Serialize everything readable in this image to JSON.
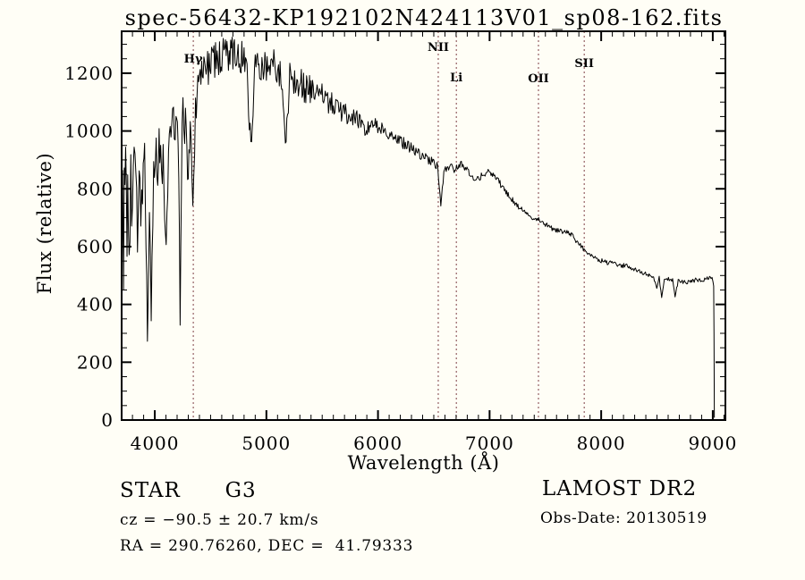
{
  "title": "spec-56432-KP192102N424113V01_sp08-162.fits",
  "annotations": {
    "object_class": "STAR      G3",
    "survey": "LAMOST DR2",
    "cz": "cz = −90.5 ± 20.7 km/s",
    "obs_date": "Obs-Date: 20130519",
    "ra_dec": "RA = 290.76260, DEC =  41.79333"
  },
  "chart_data": {
    "type": "line",
    "title": "spec-56432-KP192102N424113V01_sp08-162.fits",
    "xlabel": "Wavelength (Å)",
    "ylabel": "Flux (relative)",
    "xlim": [
      3703,
      9113
    ],
    "ylim": [
      0,
      1345
    ],
    "xticks": [
      4000,
      5000,
      6000,
      7000,
      8000,
      9000
    ],
    "yticks": [
      0,
      200,
      400,
      600,
      800,
      1000,
      1200
    ],
    "x_minor_step": 100,
    "y_minor_step": 50,
    "grid": false,
    "frame_color": "#000000",
    "curve_color": "#000000",
    "marker_line_color": "#7e4046",
    "spectral_lines": [
      {
        "label": "Hγ",
        "wavelength": 4345,
        "label_y": 70
      },
      {
        "label": "NII",
        "wavelength": 6540,
        "label_y": 57
      },
      {
        "label": "Li",
        "wavelength": 6702,
        "label_y": 91
      },
      {
        "label": "OII",
        "wavelength": 7438,
        "label_y": 92
      },
      {
        "label": "SII",
        "wavelength": 7848,
        "label_y": 75
      }
    ],
    "points_format": [
      "wavelength_angstrom",
      "flux_relative",
      "noise_half_amplitude"
    ],
    "series": [
      {
        "name": "spectrum",
        "points": [
          [
            3703,
            560,
            260
          ],
          [
            3720,
            680,
            240
          ],
          [
            3745,
            760,
            210
          ],
          [
            3770,
            700,
            230
          ],
          [
            3800,
            820,
            170
          ],
          [
            3830,
            700,
            210
          ],
          [
            3860,
            820,
            160
          ],
          [
            3890,
            770,
            170
          ],
          [
            3915,
            860,
            120
          ],
          [
            3934,
            270,
            40
          ],
          [
            3952,
            760,
            90
          ],
          [
            3968,
            360,
            45
          ],
          [
            3990,
            820,
            110
          ],
          [
            4020,
            900,
            110
          ],
          [
            4045,
            950,
            105
          ],
          [
            4075,
            880,
            100
          ],
          [
            4102,
            570,
            60
          ],
          [
            4130,
            1010,
            100
          ],
          [
            4160,
            1080,
            95
          ],
          [
            4190,
            1030,
            95
          ],
          [
            4215,
            900,
            80
          ],
          [
            4227,
            300,
            35
          ],
          [
            4245,
            1060,
            85
          ],
          [
            4275,
            1020,
            85
          ],
          [
            4300,
            780,
            70
          ],
          [
            4318,
            1080,
            80
          ],
          [
            4341,
            720,
            55
          ],
          [
            4365,
            1090,
            85
          ],
          [
            4400,
            1170,
            80
          ],
          [
            4440,
            1210,
            75
          ],
          [
            4480,
            1230,
            70
          ],
          [
            4530,
            1245,
            70
          ],
          [
            4580,
            1250,
            68
          ],
          [
            4640,
            1262,
            65
          ],
          [
            4700,
            1270,
            62
          ],
          [
            4760,
            1262,
            62
          ],
          [
            4820,
            1255,
            60
          ],
          [
            4861,
            945,
            40
          ],
          [
            4900,
            1240,
            58
          ],
          [
            4960,
            1228,
            58
          ],
          [
            5020,
            1230,
            56
          ],
          [
            5080,
            1235,
            55
          ],
          [
            5130,
            1190,
            55
          ],
          [
            5170,
            940,
            40
          ],
          [
            5210,
            1200,
            60
          ],
          [
            5260,
            1185,
            62
          ],
          [
            5320,
            1165,
            62
          ],
          [
            5380,
            1150,
            58
          ],
          [
            5440,
            1135,
            52
          ],
          [
            5520,
            1110,
            46
          ],
          [
            5600,
            1088,
            40
          ],
          [
            5680,
            1068,
            36
          ],
          [
            5760,
            1050,
            33
          ],
          [
            5840,
            1035,
            30
          ],
          [
            5890,
            995,
            22
          ],
          [
            5940,
            1030,
            27
          ],
          [
            6020,
            1012,
            25
          ],
          [
            6100,
            992,
            24
          ],
          [
            6180,
            970,
            23
          ],
          [
            6260,
            950,
            22
          ],
          [
            6340,
            928,
            20
          ],
          [
            6420,
            910,
            19
          ],
          [
            6480,
            895,
            17
          ],
          [
            6535,
            875,
            14
          ],
          [
            6563,
            740,
            9
          ],
          [
            6590,
            858,
            13
          ],
          [
            6640,
            878,
            13
          ],
          [
            6690,
            866,
            13
          ],
          [
            6740,
            885,
            13
          ],
          [
            6790,
            868,
            13
          ],
          [
            6840,
            848,
            12
          ],
          [
            6885,
            830,
            11
          ],
          [
            6940,
            850,
            12
          ],
          [
            7000,
            858,
            12
          ],
          [
            7060,
            835,
            11
          ],
          [
            7120,
            805,
            11
          ],
          [
            7180,
            772,
            10
          ],
          [
            7240,
            748,
            10
          ],
          [
            7300,
            722,
            10
          ],
          [
            7360,
            706,
            9
          ],
          [
            7420,
            696,
            9
          ],
          [
            7480,
            683,
            9
          ],
          [
            7540,
            668,
            9
          ],
          [
            7600,
            655,
            9
          ],
          [
            7660,
            650,
            9
          ],
          [
            7720,
            646,
            9
          ],
          [
            7780,
            620,
            9
          ],
          [
            7840,
            592,
            9
          ],
          [
            7900,
            573,
            8
          ],
          [
            7960,
            558,
            8
          ],
          [
            8020,
            548,
            8
          ],
          [
            8090,
            542,
            8
          ],
          [
            8160,
            537,
            8
          ],
          [
            8230,
            532,
            8
          ],
          [
            8300,
            520,
            8
          ],
          [
            8370,
            509,
            7
          ],
          [
            8430,
            501,
            7
          ],
          [
            8470,
            496,
            6
          ],
          [
            8498,
            452,
            5
          ],
          [
            8520,
            494,
            6
          ],
          [
            8542,
            422,
            4
          ],
          [
            8566,
            490,
            6
          ],
          [
            8610,
            487,
            6
          ],
          [
            8640,
            484,
            6
          ],
          [
            8662,
            428,
            4
          ],
          [
            8690,
            481,
            6
          ],
          [
            8740,
            478,
            7
          ],
          [
            8800,
            476,
            8
          ],
          [
            8860,
            488,
            8
          ],
          [
            8905,
            478,
            8
          ],
          [
            8950,
            490,
            7
          ],
          [
            8985,
            495,
            6
          ],
          [
            9002,
            482,
            5
          ],
          [
            9008,
            462,
            4
          ],
          [
            9011,
            300,
            3
          ],
          [
            9014,
            8,
            2
          ]
        ]
      }
    ]
  }
}
